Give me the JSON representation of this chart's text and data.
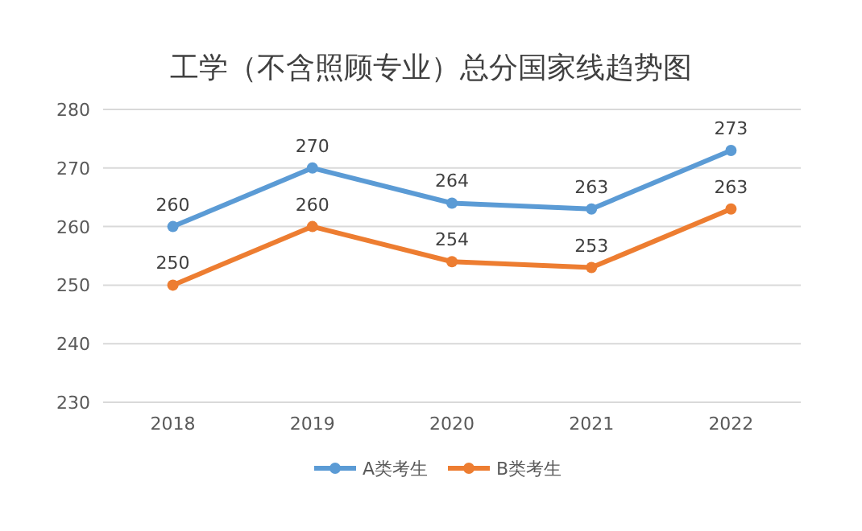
{
  "chart_data": {
    "type": "line",
    "title": "工学（不含照顾专业）总分国家线趋势图",
    "categories": [
      "2018",
      "2019",
      "2020",
      "2021",
      "2022"
    ],
    "series": [
      {
        "name": "A类考生",
        "color": "#5b9bd5",
        "values": [
          260,
          270,
          264,
          263,
          273
        ]
      },
      {
        "name": "B类考生",
        "color": "#ed7d31",
        "values": [
          250,
          260,
          254,
          253,
          263
        ]
      }
    ],
    "ylim": [
      230,
      280
    ],
    "yticks": [
      230,
      240,
      250,
      260,
      270,
      280
    ],
    "grid": "y",
    "legend": "bottom",
    "marker": "circle",
    "line_style": "solid",
    "data_labels": true
  }
}
